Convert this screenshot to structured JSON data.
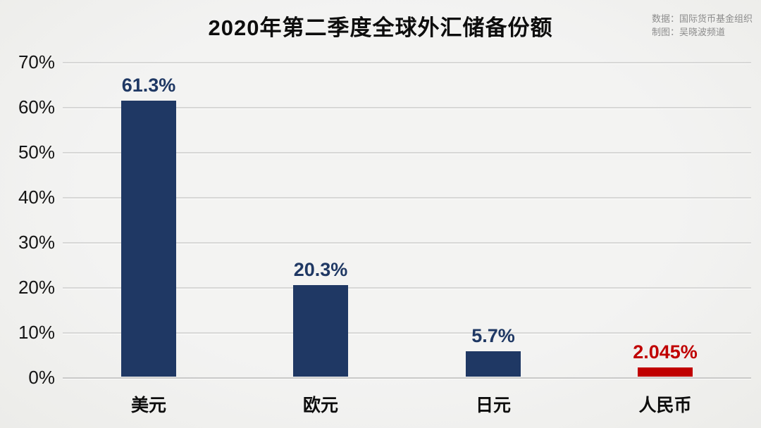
{
  "page": {
    "background": "#f1f1f0"
  },
  "header": {
    "title": "2020年第二季度全球外汇储备份额",
    "source_line1": "数据：国际货币基金组织",
    "source_line2": "制图：吴晓波频道"
  },
  "colors": {
    "bar_navy": "#1f3864",
    "bar_red": "#c00000",
    "grid": "#d7d7d6",
    "axis_text": "#141414",
    "source_text": "#8c8c8c"
  },
  "chart_data": {
    "type": "bar",
    "title": "2020年第二季度全球外汇储备份额",
    "categories": [
      "美元",
      "欧元",
      "日元",
      "人民币"
    ],
    "category_slugs": [
      "usd",
      "eur",
      "jpy",
      "cny"
    ],
    "values": [
      61.3,
      20.3,
      5.7,
      2.045
    ],
    "value_labels": [
      "61.3%",
      "20.3%",
      "5.7%",
      "2.045%"
    ],
    "bar_colors": [
      "#1f3864",
      "#1f3864",
      "#1f3864",
      "#c00000"
    ],
    "value_label_colors": [
      "#1f3864",
      "#1f3864",
      "#1f3864",
      "#c00000"
    ],
    "xlabel": "",
    "ylabel": "",
    "ylim": [
      0,
      70
    ],
    "ytick_step": 10,
    "ytick_labels": [
      "70%",
      "60%",
      "50%",
      "40%",
      "30%",
      "20%",
      "10%",
      "0%"
    ],
    "grid": "horizontal-only",
    "legend": "none",
    "annotations": {
      "source": "数据：国际货币基金组织",
      "credit": "制图：吴晓波频道"
    }
  }
}
